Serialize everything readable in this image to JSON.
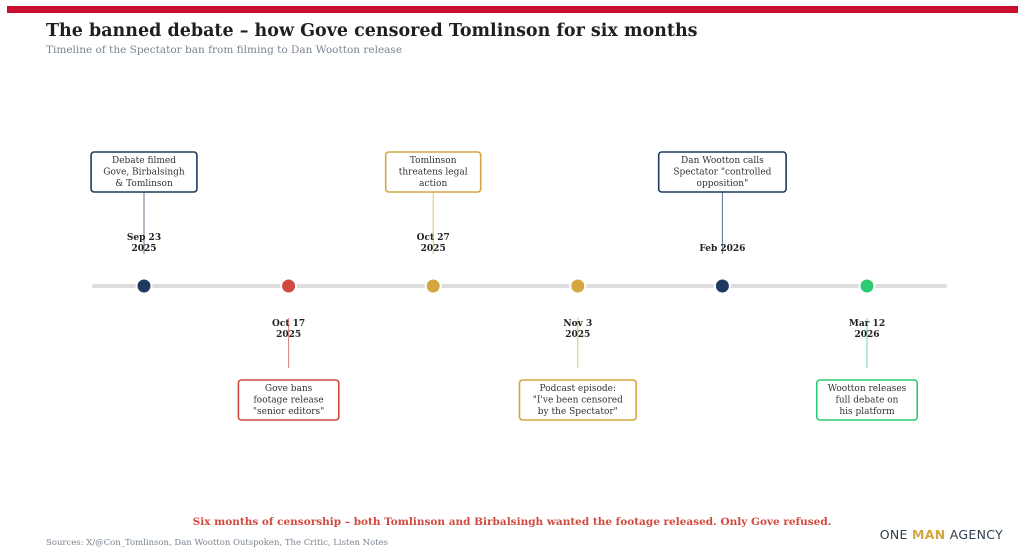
{
  "header": {
    "title": "The banned debate – how Gove censored Tomlinson for six months",
    "subtitle": "Timeline of the Spectator ban from filming to Dan Wootton release"
  },
  "colors": {
    "accent_bar": "#c8102e",
    "navy": "#1e3a5f",
    "red": "#d04a3f",
    "gold": "#d4a640",
    "green": "#2ecc71",
    "axis": "#dddddd",
    "footnote": "#d04a3f",
    "brand_dark": "#2c3e50",
    "brand_gold": "#d4a640"
  },
  "chart_data": {
    "type": "timeline",
    "events": [
      {
        "date_line1": "Sep 23",
        "date_line2": "2025",
        "label_lines": [
          "Debate filmed",
          "Gove, Birbalsingh",
          "& Tomlinson"
        ],
        "position": "above",
        "color": "navy"
      },
      {
        "date_line1": "Oct 17",
        "date_line2": "2025",
        "label_lines": [
          "Gove bans",
          "footage release",
          "\"senior editors\""
        ],
        "position": "below",
        "color": "red"
      },
      {
        "date_line1": "Oct 27",
        "date_line2": "2025",
        "label_lines": [
          "Tomlinson",
          "threatens legal",
          "action"
        ],
        "position": "above",
        "color": "gold"
      },
      {
        "date_line1": "Nov 3",
        "date_line2": "2025",
        "label_lines": [
          "Podcast episode:",
          "\"I've been censored",
          "by the Spectator\""
        ],
        "position": "below",
        "color": "gold"
      },
      {
        "date_line1": "Feb 2026",
        "date_line2": "",
        "label_lines": [
          "Dan Wootton calls",
          "Spectator \"controlled",
          "opposition\""
        ],
        "position": "above",
        "color": "navy"
      },
      {
        "date_line1": "Mar 12",
        "date_line2": "2026",
        "label_lines": [
          "Wootton releases",
          "full debate on",
          "his platform"
        ],
        "position": "below",
        "color": "green"
      }
    ]
  },
  "footer": {
    "note": "Six months of censorship – both Tomlinson and Birbalsingh wanted the footage released. Only Gove refused.",
    "sources": "Sources: X/@Con_Tomlinson, Dan Wootton Outspoken, The Critic, Listen Notes",
    "brand_one": "ONE ",
    "brand_man": "MAN",
    "brand_agency": " AGENCY"
  }
}
